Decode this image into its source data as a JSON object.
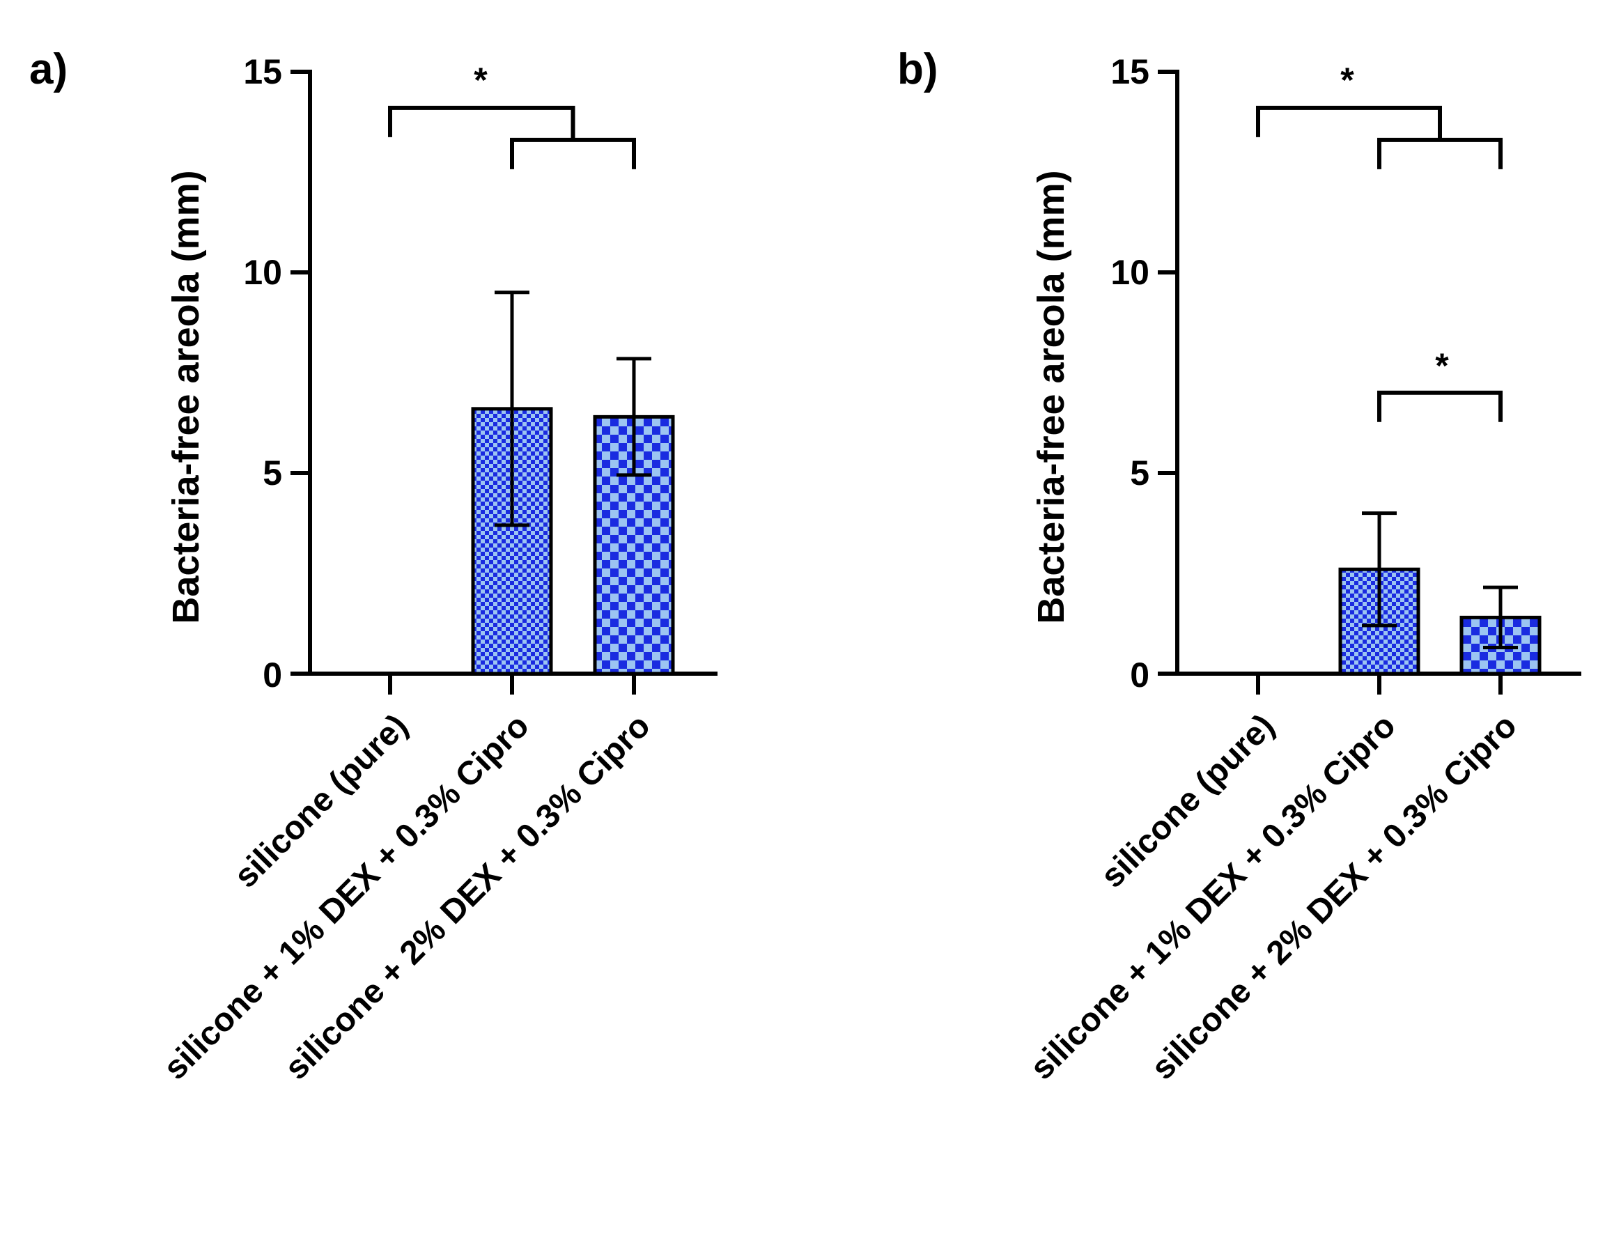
{
  "chart_data": [
    {
      "type": "bar",
      "panel_label": "a)",
      "title": "",
      "xlabel": "",
      "ylabel": "Bacteria-free  areola (mm)",
      "ylim": [
        0,
        15
      ],
      "yticks": [
        0,
        5,
        10,
        15
      ],
      "categories": [
        "silicone (pure)",
        "silicone + 1% DEX + 0.3% Cipro",
        "silicone + 2% DEX + 0.3% Cipro"
      ],
      "series": [
        {
          "name": "Bacteria-free areola",
          "values": [
            0,
            6.6,
            6.4
          ],
          "errors": [
            0,
            2.9,
            1.45
          ]
        }
      ],
      "patterns": [
        "none",
        "fine-check",
        "coarse-check"
      ],
      "significance": [
        {
          "from_group": 0,
          "to_groups": [
            1,
            2
          ],
          "label": "*",
          "levels": [
            14.1,
            13.3
          ]
        }
      ],
      "colors": {
        "dark": "#1a2be0",
        "light": "#9cc4f2",
        "axis": "#000000"
      }
    },
    {
      "type": "bar",
      "panel_label": "b)",
      "title": "",
      "xlabel": "",
      "ylabel": "Bacteria-free  areola (mm)",
      "ylim": [
        0,
        15
      ],
      "yticks": [
        0,
        5,
        10,
        15
      ],
      "categories": [
        "silicone (pure)",
        "silicone + 1% DEX + 0.3% Cipro",
        "silicone + 2% DEX + 0.3% Cipro"
      ],
      "series": [
        {
          "name": "Bacteria-free areola",
          "values": [
            0,
            2.6,
            1.4
          ],
          "errors": [
            0,
            1.4,
            0.75
          ]
        }
      ],
      "patterns": [
        "none",
        "fine-check",
        "coarse-check"
      ],
      "significance": [
        {
          "from_group": 0,
          "to_groups": [
            1,
            2
          ],
          "label": "*",
          "levels": [
            14.1,
            13.3
          ]
        },
        {
          "pair": [
            1,
            2
          ],
          "label": "*",
          "level": 7.0
        }
      ],
      "colors": {
        "dark": "#1a2be0",
        "light": "#9cc4f2",
        "axis": "#000000"
      }
    }
  ]
}
